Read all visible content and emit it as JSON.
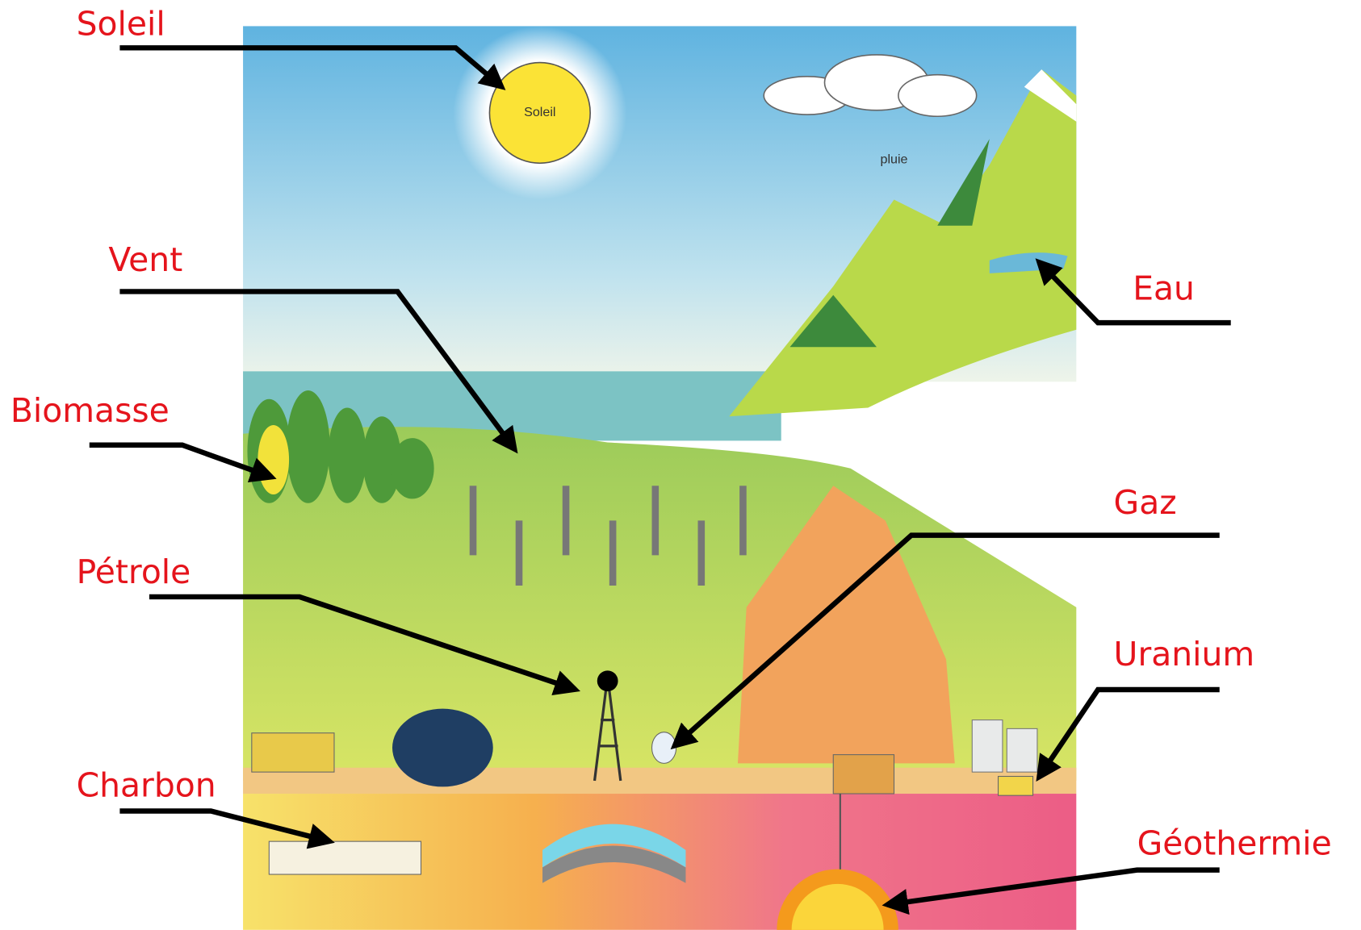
{
  "labels": [
    "Soleil",
    "Vent",
    "Biomasse",
    "Pétrole",
    "Charbon",
    "Eau",
    "Gaz",
    "Uranium",
    "Géothermie"
  ],
  "illustration": {
    "sun_label": "Soleil",
    "rain_label": "pluie"
  }
}
